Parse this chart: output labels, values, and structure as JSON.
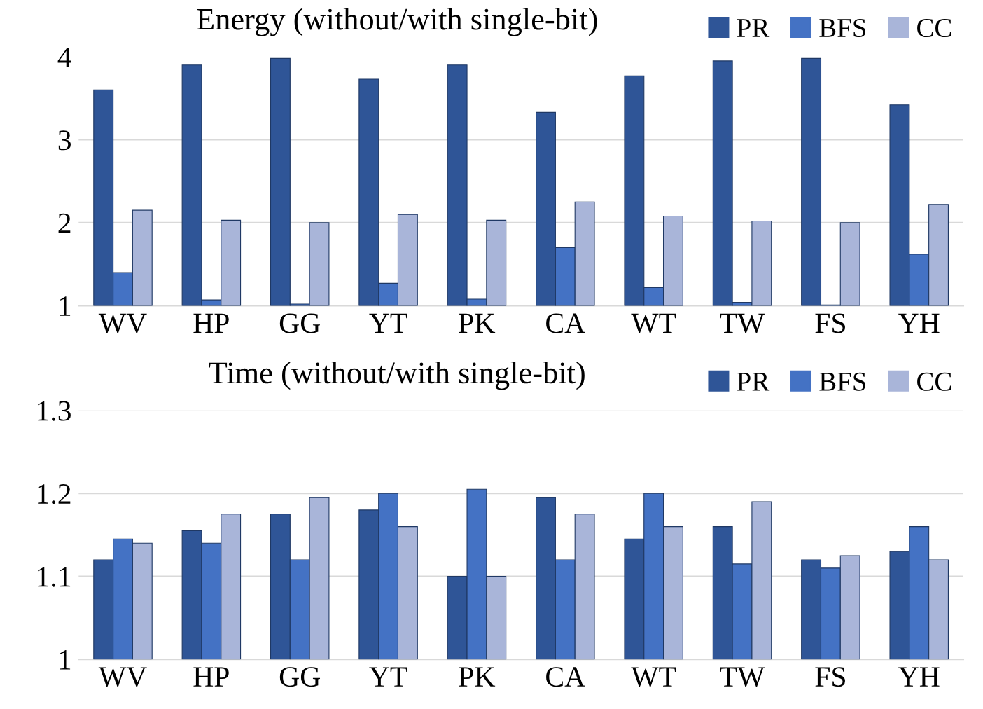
{
  "chart_data": [
    {
      "type": "bar",
      "title": "Energy (without/with single-bit)",
      "categories": [
        "WV",
        "HP",
        "GG",
        "YT",
        "PK",
        "CA",
        "WT",
        "TW",
        "FS",
        "YH"
      ],
      "series": [
        {
          "name": "PR",
          "color": "#2f5597",
          "values": [
            3.6,
            3.9,
            3.98,
            3.73,
            3.9,
            3.33,
            3.77,
            3.95,
            3.98,
            3.42
          ]
        },
        {
          "name": "BFS",
          "color": "#4472c4",
          "values": [
            1.4,
            1.07,
            1.02,
            1.27,
            1.08,
            1.7,
            1.22,
            1.04,
            1.01,
            1.62
          ]
        },
        {
          "name": "CC",
          "color": "#a9b5d9",
          "values": [
            2.15,
            2.03,
            2.0,
            2.1,
            2.03,
            2.25,
            2.08,
            2.02,
            2.0,
            2.22
          ]
        }
      ],
      "ylim": [
        1,
        4
      ],
      "yticks": [
        1,
        2,
        3,
        4
      ],
      "grid": "y",
      "legend": "top right"
    },
    {
      "type": "bar",
      "title": "Time (without/with single-bit)",
      "categories": [
        "WV",
        "HP",
        "GG",
        "YT",
        "PK",
        "CA",
        "WT",
        "TW",
        "FS",
        "YH"
      ],
      "series": [
        {
          "name": "PR",
          "color": "#2f5597",
          "values": [
            1.12,
            1.155,
            1.175,
            1.18,
            1.1,
            1.195,
            1.145,
            1.16,
            1.12,
            1.13
          ]
        },
        {
          "name": "BFS",
          "color": "#4472c4",
          "values": [
            1.145,
            1.14,
            1.12,
            1.2,
            1.205,
            1.12,
            1.2,
            1.115,
            1.11,
            1.16
          ]
        },
        {
          "name": "CC",
          "color": "#a9b5d9",
          "values": [
            1.14,
            1.175,
            1.195,
            1.16,
            1.1,
            1.175,
            1.16,
            1.19,
            1.125,
            1.12
          ]
        }
      ],
      "ylim": [
        1,
        1.3
      ],
      "yticks": [
        1,
        1.1,
        1.2,
        1.3
      ],
      "grid": "y",
      "legend": "top right"
    }
  ]
}
